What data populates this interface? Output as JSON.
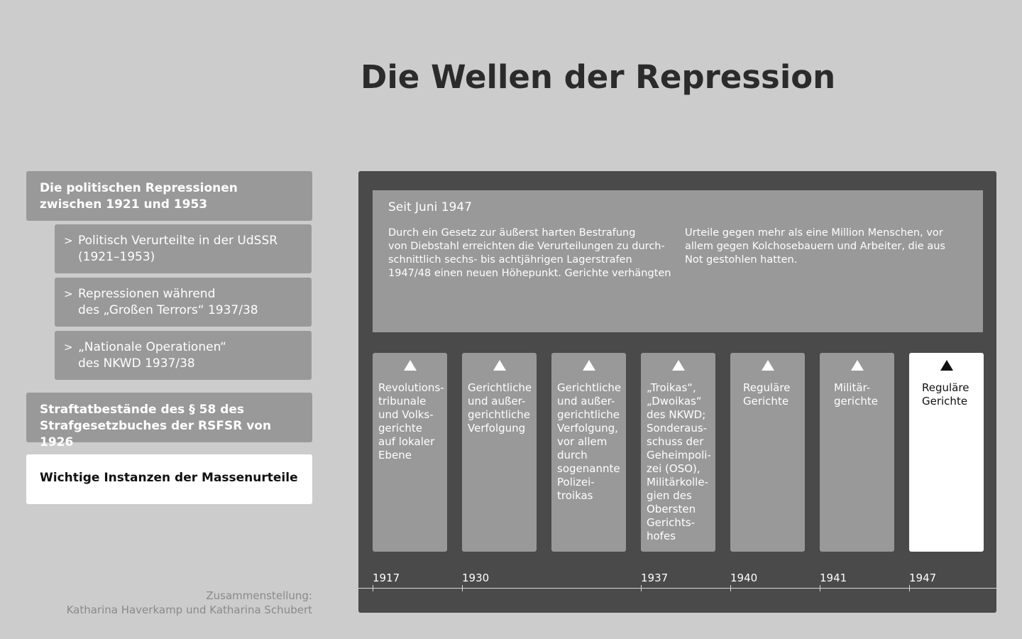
{
  "page": {
    "title": "Die Wellen der Repression"
  },
  "nav": {
    "section1": {
      "line1": "Die politischen Repressionen",
      "line2": "zwischen 1921 und 1953"
    },
    "subitems": [
      {
        "chevron": ">",
        "line1": "Politisch Verurteilte in der UdSSR",
        "line2": "(1921–1953)"
      },
      {
        "chevron": ">",
        "line1": "Repressionen während",
        "line2": "des „Großen Terrors“ 1937/38"
      },
      {
        "chevron": ">",
        "line1": "„Nationale Operationen“",
        "line2": "des NKWD 1937/38"
      }
    ],
    "section2": {
      "line1": "Straftatbestände des § 58 des",
      "line2": "Strafgesetzbuches der RSFSR von 1926"
    },
    "section3": {
      "line1": "Wichtige Instanzen der Massenurteile"
    }
  },
  "credit": {
    "line1": "Zusammenstellung:",
    "line2": "Katharina Haverkamp und Katharina Schubert"
  },
  "detail": {
    "heading": "Seit Juni 1947",
    "col1": [
      "Durch ein Gesetz zur äußerst harten Bestrafung",
      "von Diebstahl erreichten die Verurteilungen zu durch-",
      "schnittlich sechs- bis achtjährigen Lagerstrafen",
      "1947/48 einen neuen Höhepunkt. Gerichte verhängten"
    ],
    "col2": [
      "Urteile gegen mehr als eine Million Menschen, vor",
      "allem gegen Kolchosebauern und Arbeiter, die aus",
      "Not gestohlen hatten."
    ]
  },
  "cards": [
    {
      "lines": [
        "Revolutions-",
        "tribunale",
        "und Volks-",
        "gerichte",
        "auf lokaler",
        "Ebene"
      ]
    },
    {
      "lines": [
        "Gerichtliche",
        "und außer-",
        "gerichtliche",
        "Verfolgung"
      ]
    },
    {
      "lines": [
        "Gerichtliche",
        "und außer-",
        "gerichtliche",
        "Verfolgung,",
        "vor allem",
        "durch",
        "sogenannte",
        "Polizei-",
        "troikas"
      ]
    },
    {
      "lines": [
        "„Troikas“,",
        "„Dwoikas“",
        "des NKWD;",
        "Sonderaus-",
        "schuss der",
        "Geheimpoli-",
        "zei (OSO),",
        "Militärkolle-",
        "gien des",
        "Obersten",
        "Gerichts-",
        "hofes"
      ]
    },
    {
      "lines": [
        "Reguläre",
        "Gerichte"
      ]
    },
    {
      "lines": [
        "Militär-",
        "gerichte"
      ]
    },
    {
      "lines": [
        "Reguläre",
        "Gerichte"
      ]
    }
  ],
  "years": [
    "1917",
    "1930",
    "1937",
    "1940",
    "1941",
    "1947"
  ]
}
